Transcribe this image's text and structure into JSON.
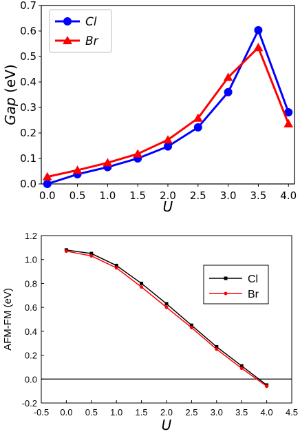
{
  "chart_data": [
    {
      "type": "line",
      "xlabel": "U",
      "ylabel": "Gap (eV)",
      "ylabel_italic_part": "Gap",
      "ylabel_unit_part": " (eV)",
      "x": [
        0.0,
        0.5,
        1.0,
        1.5,
        2.0,
        2.5,
        3.0,
        3.5,
        4.0
      ],
      "xlim": [
        -0.1,
        4.1
      ],
      "ylim": [
        0.0,
        0.7
      ],
      "xticks": [
        "0.0",
        "0.5",
        "1.0",
        "1.5",
        "2.0",
        "2.5",
        "3.0",
        "3.5",
        "4.0"
      ],
      "yticks": [
        "0.0",
        "0.1",
        "0.2",
        "0.3",
        "0.4",
        "0.5",
        "0.6",
        "0.7"
      ],
      "legend_position": "top-left",
      "series": [
        {
          "name": "Cl",
          "color": "#0000ff",
          "marker": "circle",
          "values": [
            0.0,
            0.038,
            0.066,
            0.1,
            0.147,
            0.222,
            0.36,
            0.603,
            0.281
          ]
        },
        {
          "name": "Br",
          "color": "#ff0000",
          "marker": "triangle",
          "values": [
            0.028,
            0.054,
            0.083,
            0.118,
            0.173,
            0.258,
            0.418,
            0.535,
            0.236
          ]
        }
      ]
    },
    {
      "type": "line",
      "xlabel": "U",
      "ylabel": "AFM-FM (eV)",
      "x": [
        0.0,
        0.5,
        1.0,
        1.5,
        2.0,
        2.5,
        3.0,
        3.5,
        4.0
      ],
      "xlim": [
        -0.5,
        4.5
      ],
      "ylim": [
        -0.2,
        1.2
      ],
      "xticks": [
        "-0.5",
        "0.0",
        "0.5",
        "1.0",
        "1.5",
        "2.0",
        "2.5",
        "3.0",
        "3.5",
        "4.0",
        "4.5"
      ],
      "yticks": [
        "-0.2",
        "0.0",
        "0.2",
        "0.4",
        "0.6",
        "0.8",
        "1.0",
        "1.2"
      ],
      "reference_line_y": 0.0,
      "legend_position": "right",
      "series": [
        {
          "name": "Cl",
          "color": "#000000",
          "marker": "square",
          "values": [
            1.08,
            1.05,
            0.95,
            0.8,
            0.63,
            0.45,
            0.27,
            0.11,
            -0.05
          ]
        },
        {
          "name": "Br",
          "color": "#ff0000",
          "marker": "circle",
          "values": [
            1.07,
            1.03,
            0.93,
            0.77,
            0.6,
            0.43,
            0.25,
            0.09,
            -0.06
          ]
        }
      ]
    }
  ]
}
